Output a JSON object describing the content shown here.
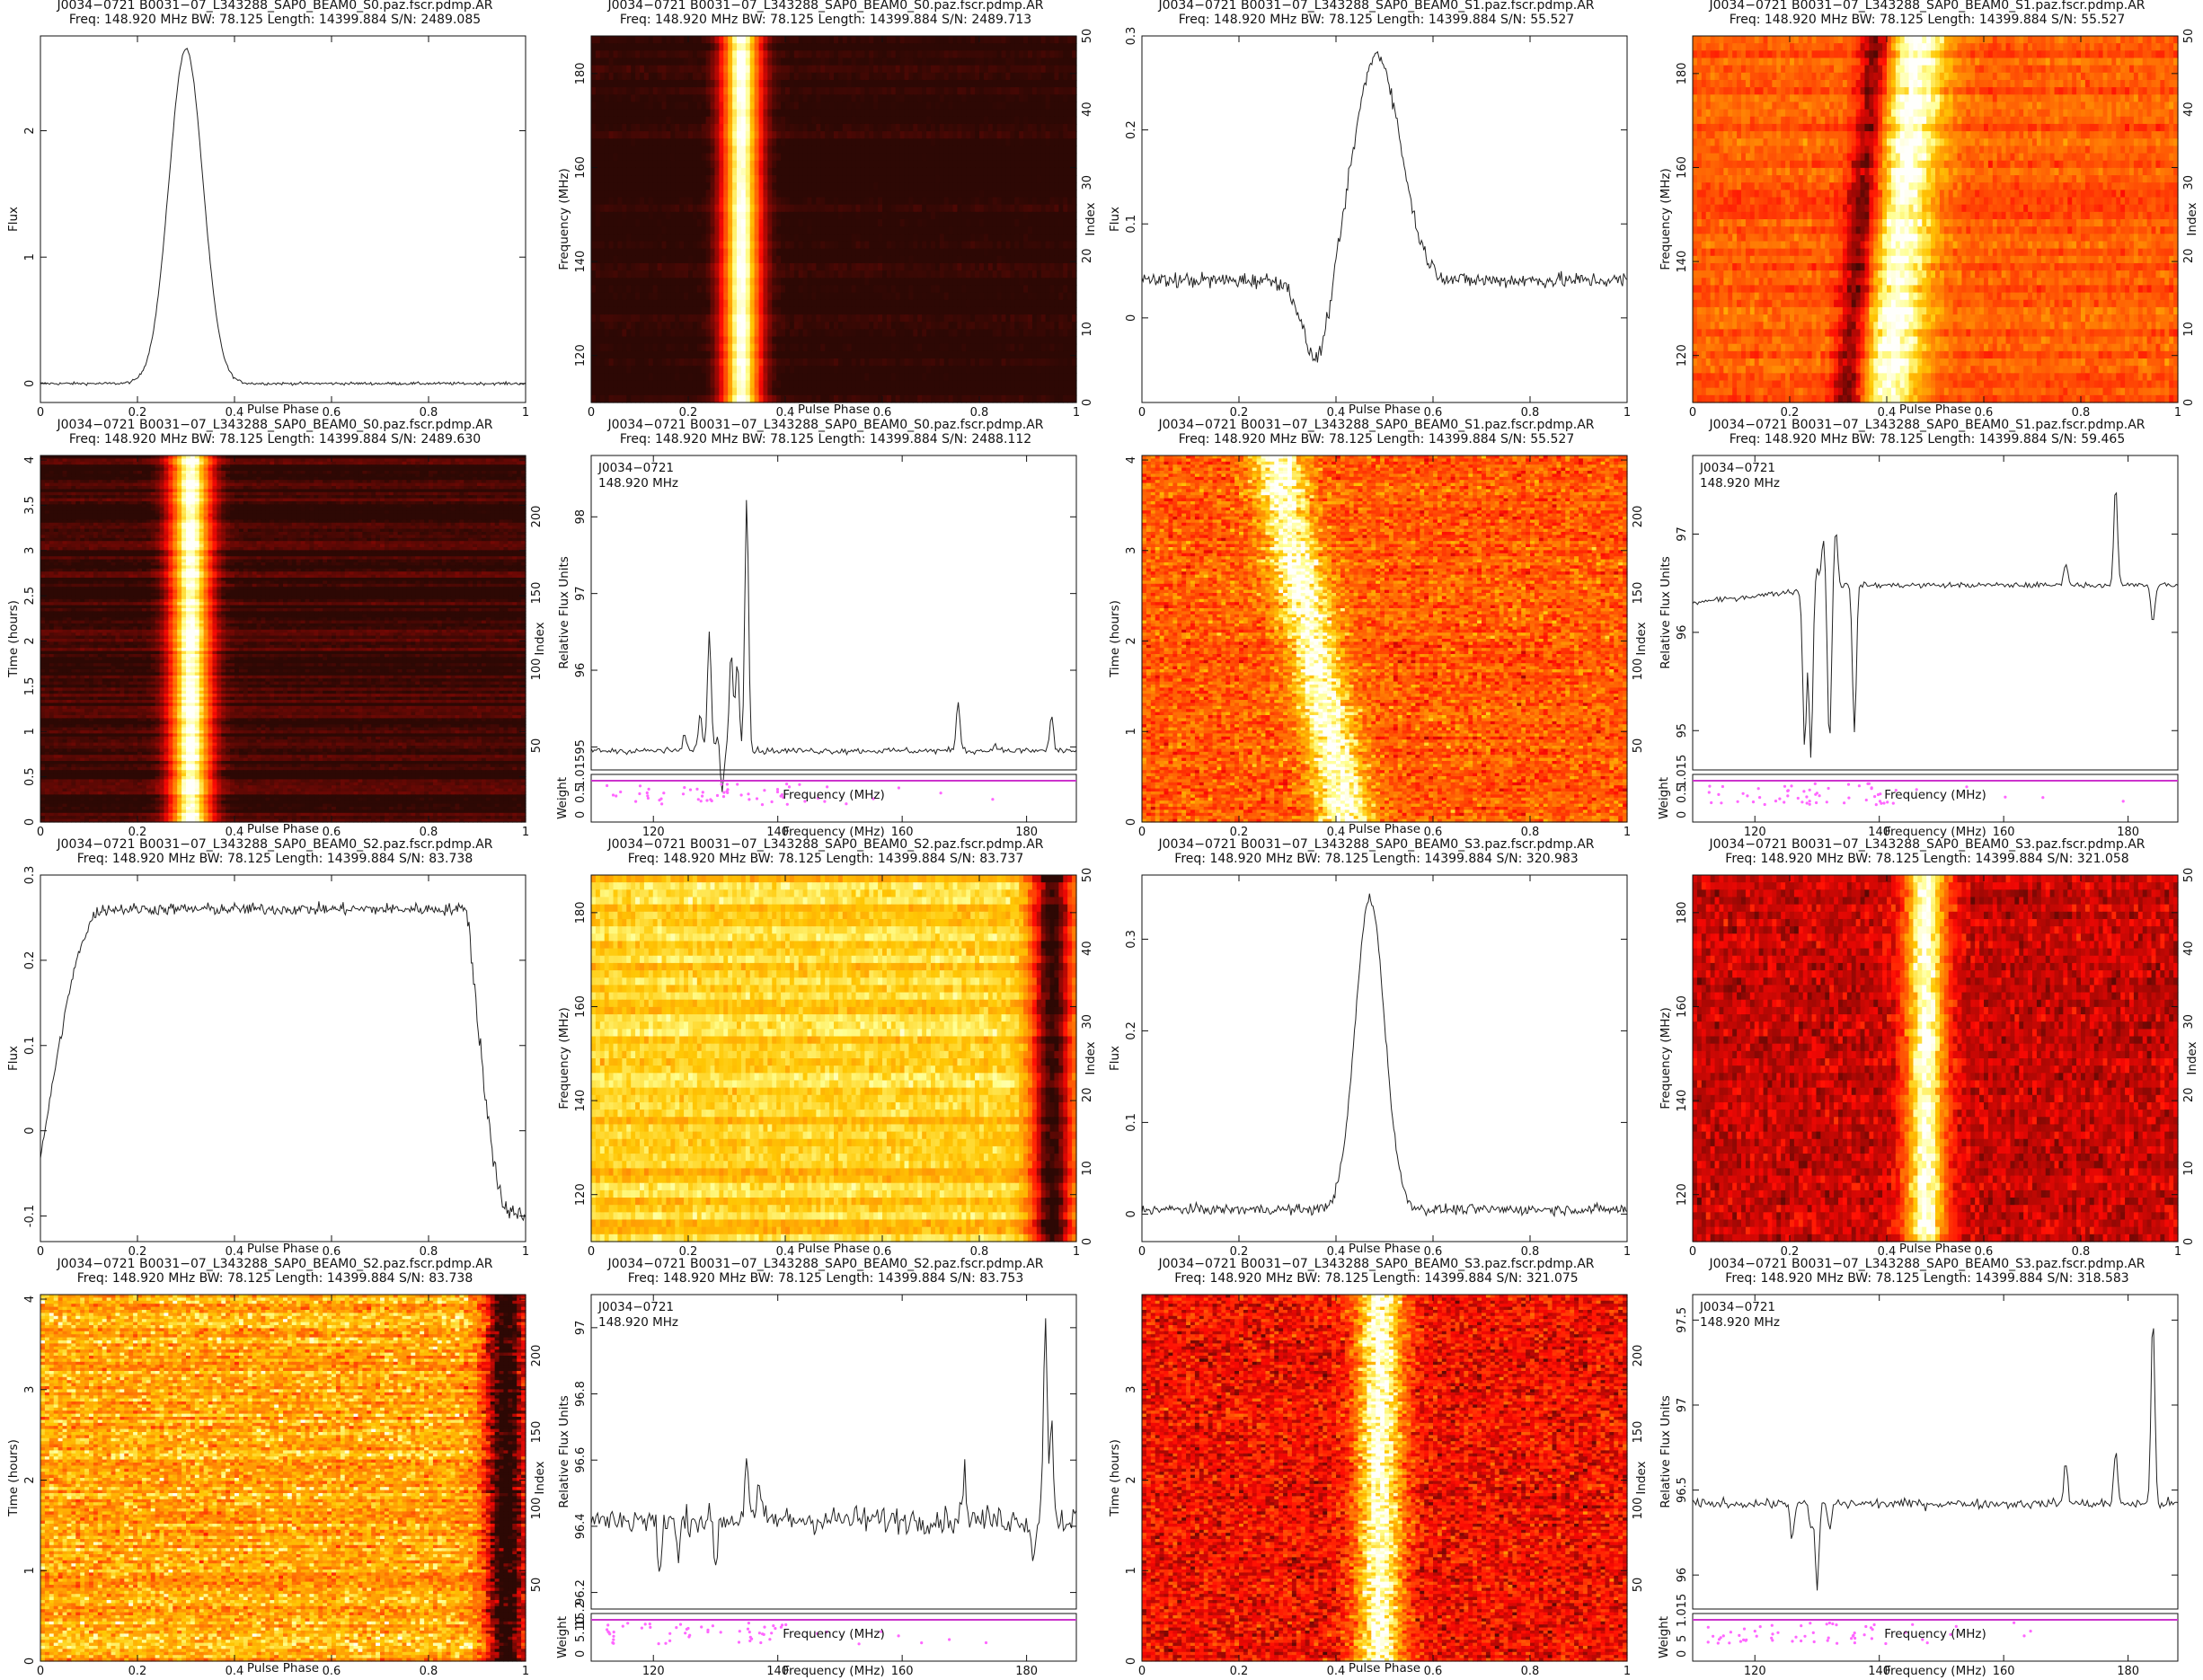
{
  "chart_data": [
    {
      "type": "line",
      "variant": "profile",
      "title": "J0034−0721  B0031−07_L343288_SAP0_BEAM0_S0.paz.fscr.pdmp.AR",
      "subtitle": "Freq: 148.920 MHz  BW: 78.125  Length: 14399.884  S/N: 2489.085",
      "xlabel": "Pulse Phase",
      "ylabel": "Flux",
      "xlim": [
        0,
        1
      ],
      "ylim": [
        -0.15,
        2.75
      ],
      "xticks": [
        0,
        0.2,
        0.4,
        0.6,
        0.8,
        1
      ],
      "yticks": [
        0,
        1,
        2
      ],
      "baseline": 0.0,
      "noise": 0.008,
      "components": [
        {
          "center": 0.3,
          "width": 0.035,
          "amp": 2.65
        }
      ]
    },
    {
      "type": "heatmap",
      "variant": "freq",
      "title": "J0034−0721  B0031−07_L343288_SAP0_BEAM0_S0.paz.fscr.pdmp.AR",
      "subtitle": "Freq: 148.920 MHz  BW: 78.125  Length: 14399.884  S/N: 2489.713",
      "xlabel": "Pulse Phase",
      "ylabel": "Frequency (MHz)",
      "y2label": "Index",
      "xlim": [
        0,
        1
      ],
      "ylim": [
        110,
        188
      ],
      "y2lim": [
        0,
        50
      ],
      "xticks": [
        0,
        0.2,
        0.4,
        0.6,
        0.8,
        1
      ],
      "yticks": [
        120,
        140,
        160,
        180
      ],
      "y2ticks": [
        0,
        10,
        20,
        30,
        40,
        50
      ],
      "colormap": "heat",
      "background": 0.06,
      "noise": 0.015,
      "pulse_center": 0.31,
      "pulse_width": 0.028,
      "drift": 0.0,
      "rows": 50,
      "stripe_strength": 0.15
    },
    {
      "type": "line",
      "variant": "profile",
      "title": "J0034−0721  B0031−07_L343288_SAP0_BEAM0_S1.paz.fscr.pdmp.AR",
      "subtitle": "Freq: 148.920 MHz  BW: 78.125  Length: 14399.884  S/N: 55.527",
      "xlabel": "Pulse Phase",
      "ylabel": "Flux",
      "xlim": [
        0,
        1
      ],
      "ylim": [
        -0.09,
        0.3
      ],
      "xticks": [
        0,
        0.2,
        0.4,
        0.6,
        0.8,
        1
      ],
      "yticks": [
        0,
        0.1,
        0.2,
        0.3
      ],
      "baseline": 0.04,
      "noise": 0.006,
      "components": [
        {
          "center": 0.36,
          "width": 0.028,
          "amp": -0.09
        },
        {
          "center": 0.485,
          "width": 0.048,
          "amp": 0.24
        }
      ]
    },
    {
      "type": "heatmap",
      "variant": "freq",
      "title": "J0034−0721  B0031−07_L343288_SAP0_BEAM0_S1.paz.fscr.pdmp.AR",
      "subtitle": "Freq: 148.920 MHz  BW: 78.125  Length: 14399.884  S/N: 55.527",
      "xlabel": "Pulse Phase",
      "ylabel": "Frequency (MHz)",
      "y2label": "Index",
      "xlim": [
        0,
        1
      ],
      "ylim": [
        110,
        188
      ],
      "y2lim": [
        0,
        50
      ],
      "xticks": [
        0,
        0.2,
        0.4,
        0.6,
        0.8,
        1
      ],
      "yticks": [
        120,
        140,
        160,
        180
      ],
      "y2ticks": [
        0,
        10,
        20,
        30,
        40,
        50
      ],
      "colormap": "heat",
      "background": 0.55,
      "noise": 0.06,
      "pulse_center": 0.43,
      "pulse_width": 0.05,
      "drift": 0.06,
      "rows": 50,
      "stripe_strength": 0.25,
      "dip": true
    },
    {
      "type": "heatmap",
      "variant": "time",
      "title": "J0034−0721  B0031−07_L343288_SAP0_BEAM0_S0.paz.fscr.pdmp.AR",
      "subtitle": "Freq: 148.920 MHz  BW: 78.125  Length: 14399.884  S/N: 2489.630",
      "xlabel": "Pulse Phase",
      "ylabel": "Time (hours)",
      "y2label": "Index",
      "xlim": [
        0,
        1
      ],
      "ylim": [
        0,
        4.05
      ],
      "y2lim": [
        0,
        240
      ],
      "xticks": [
        0,
        0.2,
        0.4,
        0.6,
        0.8,
        1
      ],
      "yticks": [
        0,
        0.5,
        1,
        1.5,
        2,
        2.5,
        3,
        3.5,
        4
      ],
      "y2ticks": [
        50,
        100,
        150,
        200
      ],
      "colormap": "heat",
      "background": 0.08,
      "noise": 0.02,
      "pulse_center": 0.31,
      "pulse_width": 0.03,
      "drift": 0.0,
      "rows": 120,
      "stripe_strength": 0.3
    },
    {
      "type": "line",
      "variant": "bandpass",
      "title": "J0034−0721  B0031−07_L343288_SAP0_BEAM0_S0.paz.fscr.pdmp.AR",
      "subtitle": "Freq: 148.920 MHz  BW: 78.125  Length: 14399.884  S/N: 2488.112",
      "annotation": [
        "J0034−0721",
        "148.920 MHz"
      ],
      "xlabel": "Frequency (MHz)",
      "ylabel": "Relative Flux Units",
      "weight_label": "Weight",
      "xlim": [
        110,
        188
      ],
      "ylim": [
        94.7,
        98.8
      ],
      "xticks": [
        120,
        140,
        160,
        180
      ],
      "yticks": [
        95,
        96,
        97,
        98
      ],
      "weight_ticks": [
        "0",
        "0.5",
        "1.015"
      ],
      "baseline": 94.95,
      "noise": 0.03,
      "spikes": [
        [
          125,
          0.2
        ],
        [
          127.5,
          0.5
        ],
        [
          129,
          1.55
        ],
        [
          130.5,
          0.3
        ],
        [
          131,
          -0.6
        ],
        [
          132.5,
          1.3
        ],
        [
          133.5,
          1.2
        ],
        [
          135,
          3.3
        ],
        [
          169,
          0.65
        ],
        [
          175,
          0.1
        ],
        [
          184,
          0.45
        ]
      ]
    },
    {
      "type": "heatmap",
      "variant": "time",
      "title": "J0034−0721  B0031−07_L343288_SAP0_BEAM0_S1.paz.fscr.pdmp.AR",
      "subtitle": "Freq: 148.920 MHz  BW: 78.125  Length: 14399.884  S/N: 55.527",
      "xlabel": "Pulse Phase",
      "ylabel": "Time (hours)",
      "y2label": "Index",
      "xlim": [
        0,
        1
      ],
      "ylim": [
        0,
        4.05
      ],
      "y2lim": [
        0,
        240
      ],
      "xticks": [
        0,
        0.2,
        0.4,
        0.6,
        0.8,
        1
      ],
      "yticks": [
        0,
        1,
        2,
        3,
        4
      ],
      "y2ticks": [
        50,
        100,
        150,
        200
      ],
      "colormap": "heat",
      "background": 0.55,
      "noise": 0.12,
      "pulse_center": 0.35,
      "pulse_width": 0.04,
      "drift": 0.15,
      "rows": 120,
      "stripe_strength": 0.2
    },
    {
      "type": "line",
      "variant": "bandpass",
      "title": "J0034−0721  B0031−07_L343288_SAP0_BEAM0_S1.paz.fscr.pdmp.AR",
      "subtitle": "Freq: 148.920 MHz  BW: 78.125  Length: 14399.884  S/N: 59.465",
      "annotation": [
        "J0034−0721",
        "148.920 MHz"
      ],
      "xlabel": "Frequency (MHz)",
      "ylabel": "Relative Flux Units",
      "weight_label": "Weight",
      "xlim": [
        110,
        188
      ],
      "ylim": [
        94.6,
        97.8
      ],
      "xticks": [
        120,
        140,
        160,
        180
      ],
      "yticks": [
        95,
        96,
        97
      ],
      "weight_ticks": [
        "0",
        "0.5",
        "1.015"
      ],
      "baseline": 96.3,
      "slope": 0.18,
      "noise": 0.02,
      "spikes": [
        [
          128,
          -1.6
        ],
        [
          129,
          -1.7
        ],
        [
          130,
          0.2
        ],
        [
          131,
          0.5
        ],
        [
          132,
          -1.6
        ],
        [
          133,
          0.6
        ],
        [
          136,
          -1.5
        ],
        [
          170,
          0.25
        ],
        [
          178,
          1.0
        ],
        [
          184,
          -0.4
        ]
      ]
    },
    {
      "type": "line",
      "variant": "profile",
      "title": "J0034−0721  B0031−07_L343288_SAP0_BEAM0_S2.paz.fscr.pdmp.AR",
      "subtitle": "Freq: 148.920 MHz  BW: 78.125  Length: 14399.884  S/N: 83.738",
      "xlabel": "Pulse Phase",
      "ylabel": "Flux",
      "xlim": [
        0,
        1
      ],
      "ylim": [
        -0.13,
        0.3
      ],
      "xticks": [
        0,
        0.2,
        0.4,
        0.6,
        0.8,
        1
      ],
      "yticks": [
        -0.1,
        0,
        0.1,
        0.2,
        0.3
      ],
      "baseline": 0.26,
      "noise": 0.005,
      "shape": "plateau",
      "rise": [
        0.0,
        0.13
      ],
      "fall": [
        0.88,
        0.97
      ],
      "low": -0.1
    },
    {
      "type": "heatmap",
      "variant": "freq",
      "title": "J0034−0721  B0031−07_L343288_SAP0_BEAM0_S2.paz.fscr.pdmp.AR",
      "subtitle": "Freq: 148.920 MHz  BW: 78.125  Length: 14399.884  S/N: 83.737",
      "xlabel": "Pulse Phase",
      "ylabel": "Frequency (MHz)",
      "y2label": "Index",
      "xlim": [
        0,
        1
      ],
      "ylim": [
        110,
        188
      ],
      "y2lim": [
        0,
        50
      ],
      "xticks": [
        0,
        0.2,
        0.4,
        0.6,
        0.8,
        1
      ],
      "yticks": [
        120,
        140,
        160,
        180
      ],
      "y2ticks": [
        0,
        10,
        20,
        30,
        40,
        50
      ],
      "colormap": "heat",
      "background": 0.8,
      "noise": 0.05,
      "pulse_center": 0.95,
      "pulse_width": 0.03,
      "drift": 0.0,
      "rows": 50,
      "stripe_strength": 0.25,
      "inverted": true
    },
    {
      "type": "line",
      "variant": "profile",
      "title": "J0034−0721  B0031−07_L343288_SAP0_BEAM0_S3.paz.fscr.pdmp.AR",
      "subtitle": "Freq: 148.920 MHz  BW: 78.125  Length: 14399.884  S/N: 320.983",
      "xlabel": "Pulse Phase",
      "ylabel": "Flux",
      "xlim": [
        0,
        1
      ],
      "ylim": [
        -0.03,
        0.37
      ],
      "xticks": [
        0,
        0.2,
        0.4,
        0.6,
        0.8,
        1
      ],
      "yticks": [
        0,
        0.1,
        0.2,
        0.3
      ],
      "baseline": 0.005,
      "noise": 0.004,
      "components": [
        {
          "center": 0.47,
          "width": 0.03,
          "amp": 0.34
        }
      ]
    },
    {
      "type": "heatmap",
      "variant": "freq",
      "title": "J0034−0721  B0031−07_L343288_SAP0_BEAM0_S3.paz.fscr.pdmp.AR",
      "subtitle": "Freq: 148.920 MHz  BW: 78.125  Length: 14399.884  S/N: 321.058",
      "xlabel": "Pulse Phase",
      "ylabel": "Frequency (MHz)",
      "y2label": "Index",
      "xlim": [
        0,
        1
      ],
      "ylim": [
        110,
        188
      ],
      "y2lim": [
        0,
        50
      ],
      "xticks": [
        0,
        0.2,
        0.4,
        0.6,
        0.8,
        1
      ],
      "yticks": [
        120,
        140,
        160,
        180
      ],
      "y2ticks": [
        0,
        10,
        20,
        30,
        40,
        50
      ],
      "colormap": "heat",
      "background": 0.3,
      "noise": 0.08,
      "pulse_center": 0.48,
      "pulse_width": 0.03,
      "drift": 0.0,
      "rows": 50,
      "stripe_strength": 0.1
    },
    {
      "type": "heatmap",
      "variant": "time",
      "title": "J0034−0721  B0031−07_L343288_SAP0_BEAM0_S2.paz.fscr.pdmp.AR",
      "subtitle": "Freq: 148.920 MHz  BW: 78.125  Length: 14399.884  S/N: 83.738",
      "xlabel": "Pulse Phase",
      "ylabel": "Time (hours)",
      "y2label": "Index",
      "xlim": [
        0,
        1
      ],
      "ylim": [
        0,
        4.05
      ],
      "y2lim": [
        0,
        240
      ],
      "xticks": [
        0,
        0.2,
        0.4,
        0.6,
        0.8,
        1
      ],
      "yticks": [
        0,
        1,
        2,
        3,
        4
      ],
      "y2ticks": [
        50,
        100,
        150,
        200
      ],
      "colormap": "heat",
      "background": 0.72,
      "noise": 0.12,
      "pulse_center": 0.96,
      "pulse_width": 0.03,
      "drift": 0.0,
      "rows": 120,
      "stripe_strength": 0.3,
      "inverted": true
    },
    {
      "type": "line",
      "variant": "bandpass",
      "title": "J0034−0721  B0031−07_L343288_SAP0_BEAM0_S2.paz.fscr.pdmp.AR",
      "subtitle": "Freq: 148.920 MHz  BW: 78.125  Length: 14399.884  S/N: 83.753",
      "annotation": [
        "J0034−0721",
        "148.920 MHz"
      ],
      "xlabel": "Frequency (MHz)",
      "ylabel": "Relative Flux Units",
      "weight_label": "Weight",
      "xlim": [
        110,
        188
      ],
      "ylim": [
        96.15,
        97.1
      ],
      "xticks": [
        120,
        140,
        160,
        180
      ],
      "yticks": [
        96.2,
        96.4,
        96.6,
        96.8,
        97
      ],
      "weight_ticks": [
        "0",
        "5.10",
        "15.2"
      ],
      "baseline": 96.42,
      "noise": 0.03,
      "spikes": [
        [
          121,
          -0.18
        ],
        [
          124,
          -0.12
        ],
        [
          130,
          -0.13
        ],
        [
          135,
          0.2
        ],
        [
          137,
          0.1
        ],
        [
          170,
          0.15
        ],
        [
          181,
          -0.12
        ],
        [
          183,
          0.6
        ],
        [
          184,
          0.3
        ]
      ]
    },
    {
      "type": "heatmap",
      "variant": "time",
      "title": "J0034−0721  B0031−07_L343288_SAP0_BEAM0_S3.paz.fscr.pdmp.AR",
      "subtitle": "Freq: 148.920 MHz  BW: 78.125  Length: 14399.884  S/N: 321.075",
      "xlabel": "Pulse Phase",
      "ylabel": "Time (hours)",
      "y2label": "Index",
      "xlim": [
        0,
        1
      ],
      "ylim": [
        0,
        4.05
      ],
      "y2lim": [
        0,
        240
      ],
      "xticks": [
        0,
        0.2,
        0.4,
        0.6,
        0.8,
        1
      ],
      "yticks": [
        0,
        1,
        2,
        3
      ],
      "y2ticks": [
        50,
        100,
        150,
        200
      ],
      "colormap": "heat",
      "background": 0.38,
      "noise": 0.13,
      "pulse_center": 0.49,
      "pulse_width": 0.035,
      "drift": 0.0,
      "rows": 120,
      "stripe_strength": 0.1
    },
    {
      "type": "line",
      "variant": "bandpass",
      "title": "J0034−0721  B0031−07_L343288_SAP0_BEAM0_S3.paz.fscr.pdmp.AR",
      "subtitle": "Freq: 148.920 MHz  BW: 78.125  Length: 14399.884  S/N: 318.583",
      "annotation": [
        "J0034−0721",
        "148.920 MHz"
      ],
      "xlabel": "Frequency (MHz)",
      "ylabel": "Relative Flux Units",
      "weight_label": "Weight",
      "xlim": [
        110,
        188
      ],
      "ylim": [
        95.8,
        97.65
      ],
      "xticks": [
        120,
        140,
        160,
        180
      ],
      "yticks": [
        96,
        96.5,
        97,
        97.5
      ],
      "weight_ticks": [
        "0",
        "5",
        "1.015"
      ],
      "baseline": 96.42,
      "noise": 0.02,
      "spikes": [
        [
          126,
          -0.2
        ],
        [
          129,
          -0.15
        ],
        [
          130,
          -0.5
        ],
        [
          132,
          -0.15
        ],
        [
          170,
          0.25
        ],
        [
          178,
          0.3
        ],
        [
          184,
          1.1
        ]
      ]
    }
  ]
}
